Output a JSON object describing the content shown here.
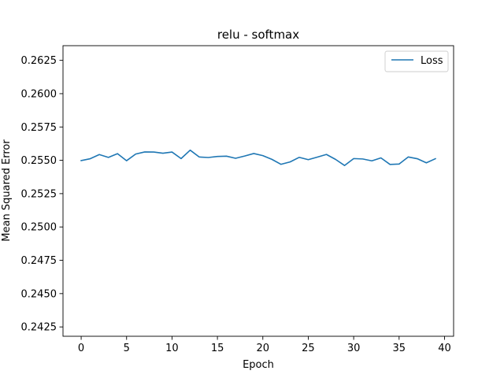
{
  "chart_data": {
    "type": "line",
    "title": "relu - softmax",
    "xlabel": "Epoch",
    "ylabel": "Mean Squared Error",
    "xlim": [
      -2,
      41
    ],
    "ylim": [
      0.2418,
      0.2636
    ],
    "xticks": [
      0,
      5,
      10,
      15,
      20,
      25,
      30,
      35,
      40
    ],
    "xtick_labels": [
      "0",
      "5",
      "10",
      "15",
      "20",
      "25",
      "30",
      "35",
      "40"
    ],
    "yticks": [
      0.2425,
      0.245,
      0.2475,
      0.25,
      0.2525,
      0.255,
      0.2575,
      0.26,
      0.2625
    ],
    "ytick_labels": [
      "0.2425",
      "0.2450",
      "0.2475",
      "0.2500",
      "0.2525",
      "0.2550",
      "0.2575",
      "0.2600",
      "0.2625"
    ],
    "grid": false,
    "legend_position": "top-right",
    "series": [
      {
        "name": "Loss",
        "color": "#1f77b4",
        "x": [
          0,
          1,
          2,
          3,
          4,
          5,
          6,
          7,
          8,
          9,
          10,
          11,
          12,
          13,
          14,
          15,
          16,
          17,
          18,
          19,
          20,
          21,
          22,
          23,
          24,
          25,
          26,
          27,
          28,
          29,
          30,
          31,
          32,
          33,
          34,
          35,
          36,
          37,
          38,
          39
        ],
        "values": [
          0.25498,
          0.25512,
          0.25543,
          0.25522,
          0.2555,
          0.25497,
          0.25547,
          0.25563,
          0.25562,
          0.25553,
          0.25562,
          0.25513,
          0.25576,
          0.25525,
          0.25521,
          0.25529,
          0.25531,
          0.25515,
          0.25532,
          0.25551,
          0.25535,
          0.25507,
          0.2547,
          0.25488,
          0.25522,
          0.25505,
          0.25524,
          0.25544,
          0.25507,
          0.25461,
          0.25513,
          0.2551,
          0.25496,
          0.25518,
          0.25469,
          0.25472,
          0.25525,
          0.25512,
          0.25481,
          0.25512
        ]
      }
    ]
  }
}
